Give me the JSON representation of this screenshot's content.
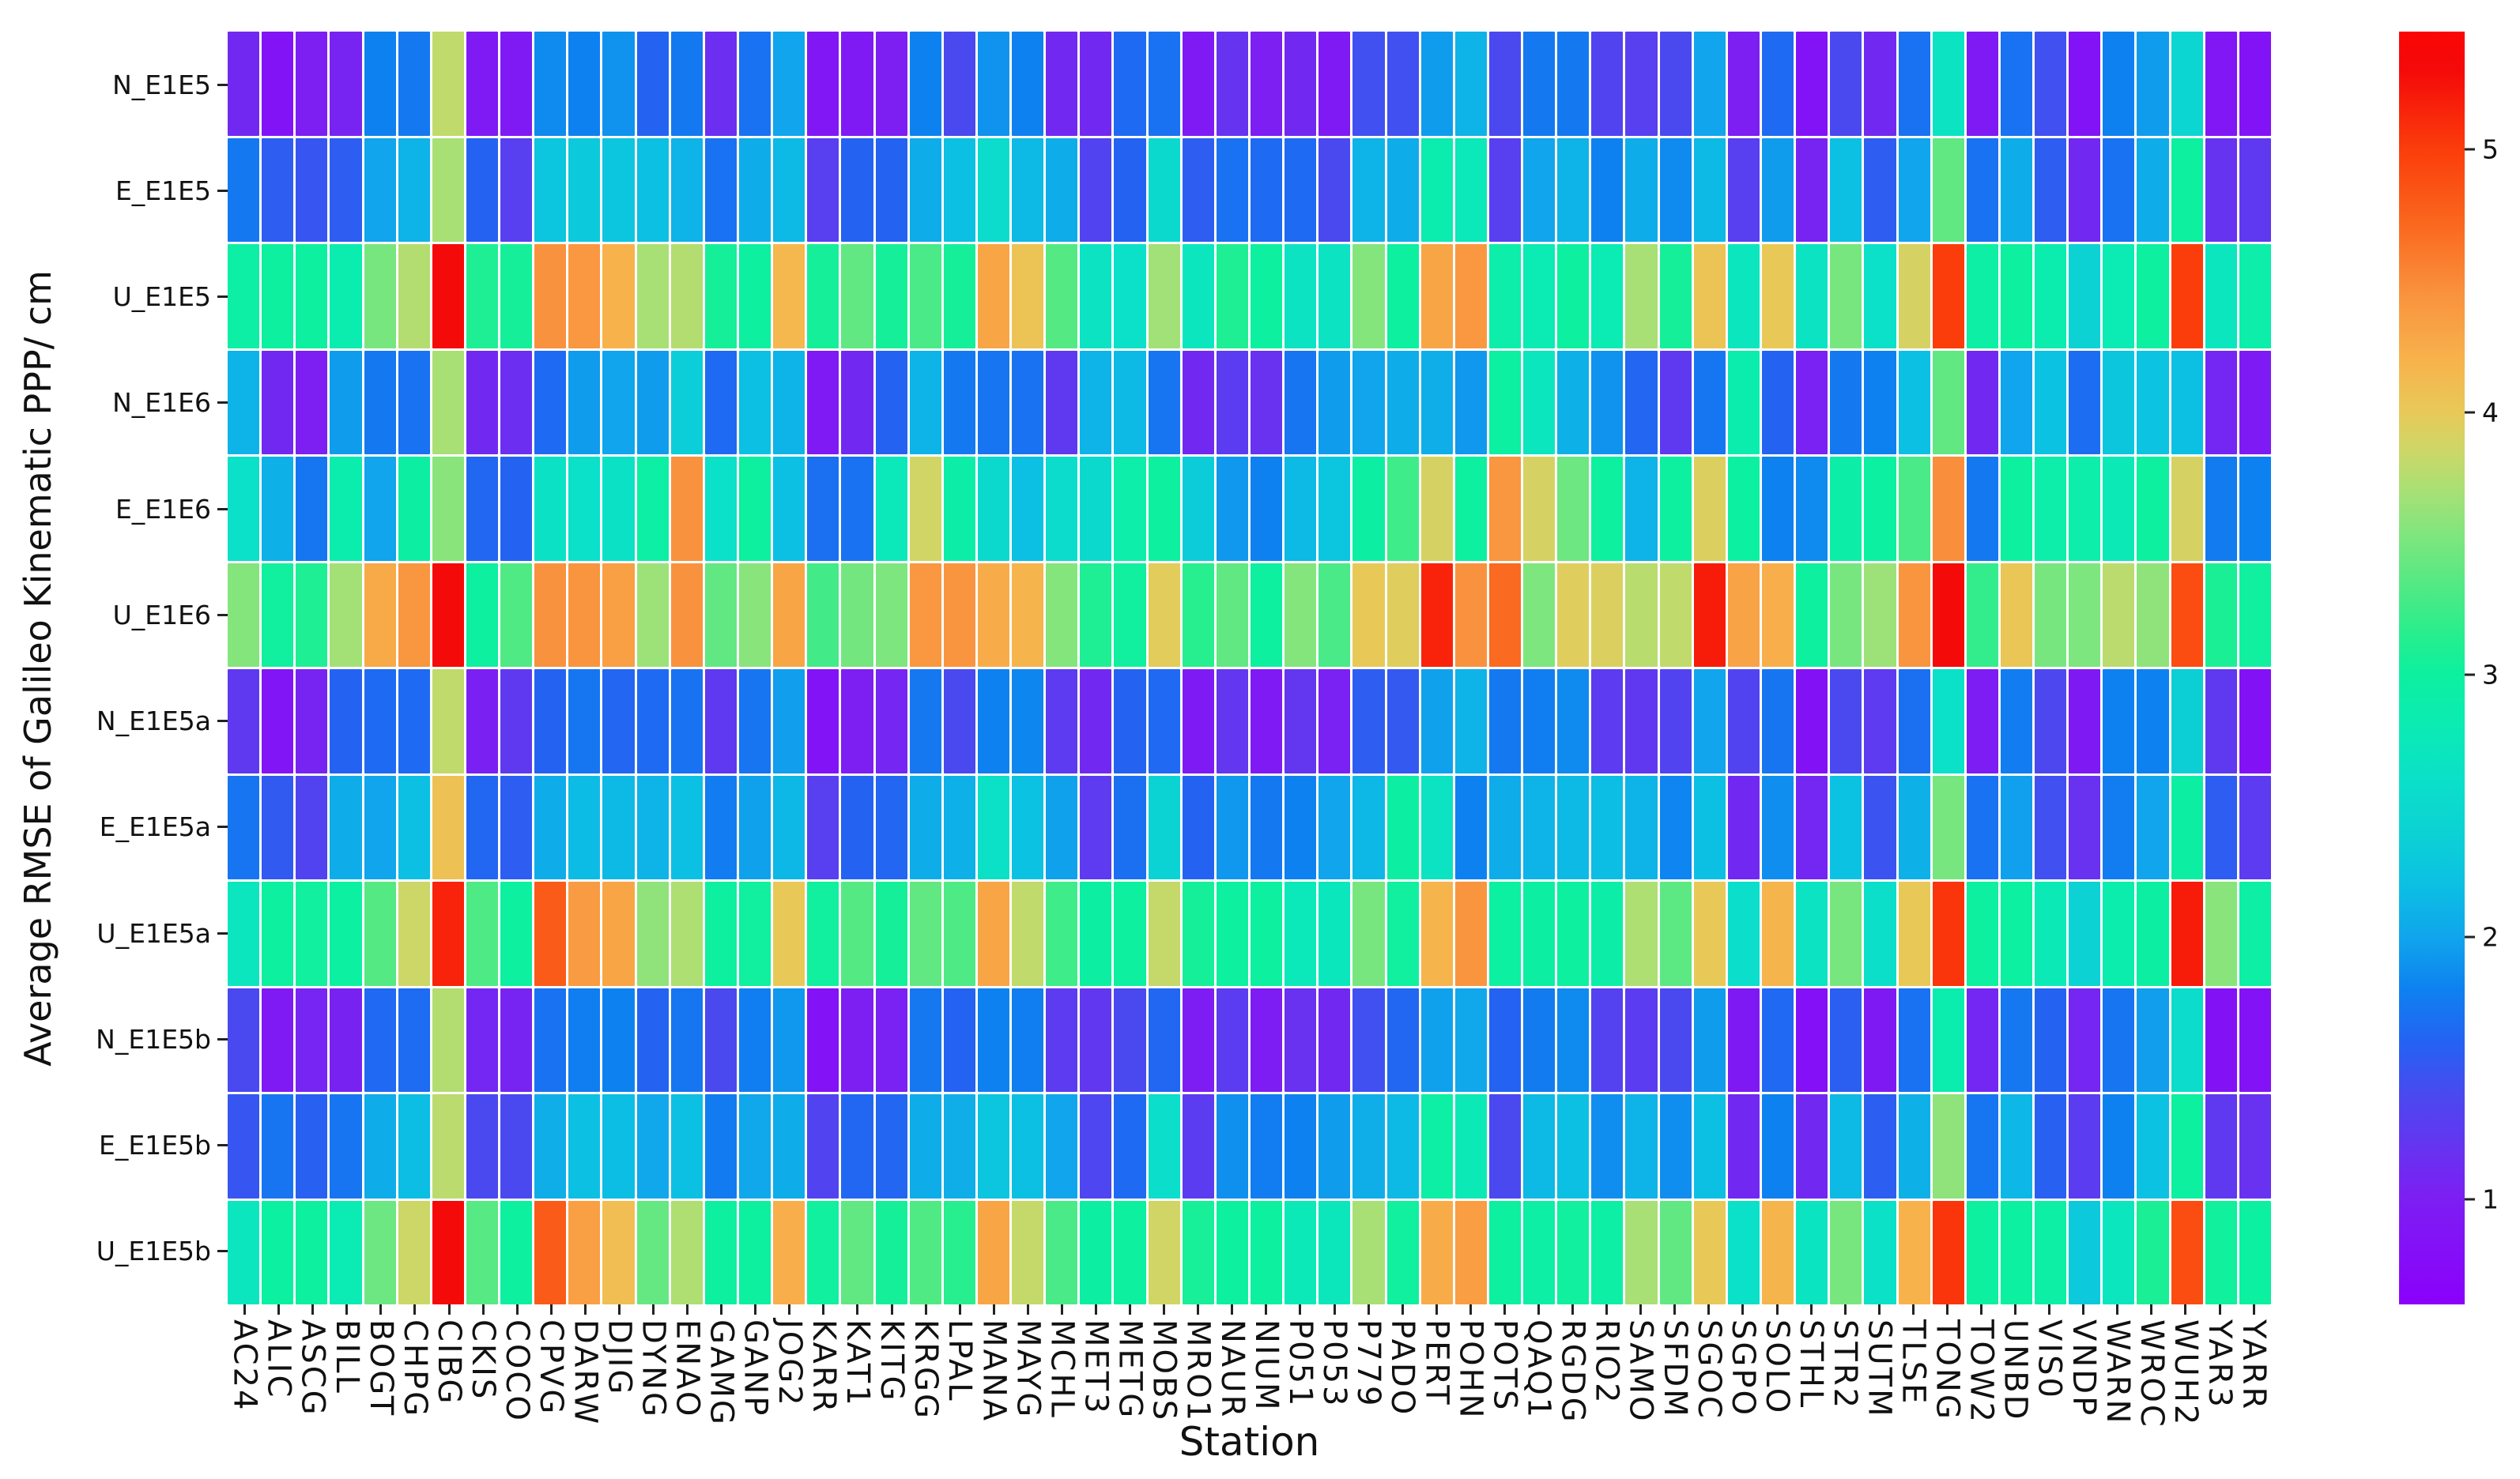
{
  "figure": {
    "background": "#ffffff",
    "text_color": "#111111",
    "tick_color": "#222222",
    "cell_gap_color": "#ffffff"
  },
  "chart_data": {
    "type": "heatmap",
    "title": "",
    "xlabel": "Station",
    "ylabel": "Average RMSE of Galileo Kinematic PPP/ cm",
    "legend_position": "right-colorbar",
    "grid": false,
    "colorbar_ticks": [
      1,
      2,
      3,
      4,
      5
    ],
    "value_range": [
      0.6,
      5.45
    ],
    "colormap_anchors": [
      [
        0.6,
        "#8b00fb"
      ],
      [
        1.0,
        "#7d1ef3"
      ],
      [
        1.2,
        "#6634f0"
      ],
      [
        1.4,
        "#4a49f0"
      ],
      [
        1.6,
        "#2463f2"
      ],
      [
        1.8,
        "#0e81f0"
      ],
      [
        2.0,
        "#10a5ec"
      ],
      [
        2.2,
        "#0cc0e3"
      ],
      [
        2.4,
        "#0cd2d4"
      ],
      [
        2.6,
        "#0be0c8"
      ],
      [
        2.8,
        "#0bebb4"
      ],
      [
        3.0,
        "#0cf0a0"
      ],
      [
        3.15,
        "#27ee8e"
      ],
      [
        3.35,
        "#55e984"
      ],
      [
        3.55,
        "#84e57d"
      ],
      [
        3.7,
        "#a8e075"
      ],
      [
        3.85,
        "#ccd768"
      ],
      [
        4.0,
        "#e8c958"
      ],
      [
        4.2,
        "#f8b24c"
      ],
      [
        4.45,
        "#f9923e"
      ],
      [
        4.7,
        "#fa6a20"
      ],
      [
        5.0,
        "#fb3d0b"
      ],
      [
        5.3,
        "#f50a0a"
      ],
      [
        5.45,
        "#fa0505"
      ]
    ],
    "rows": [
      "N_E1E5",
      "E_E1E5",
      "U_E1E5",
      "N_E1E6",
      "E_E1E6",
      "U_E1E6",
      "N_E1E5a",
      "E_E1E5a",
      "U_E1E5a",
      "N_E1E5b",
      "E_E1E5b",
      "U_E1E5b"
    ],
    "columns": [
      "AC24",
      "ALIC",
      "ASCG",
      "BILL",
      "BOGT",
      "CHPG",
      "CIBG",
      "CKIS",
      "COCO",
      "CPVG",
      "DARW",
      "DJIG",
      "DYNG",
      "ENAO",
      "GAMG",
      "GANP",
      "JOG2",
      "KARR",
      "KAT1",
      "KITG",
      "KRGG",
      "LPAL",
      "MANA",
      "MAYG",
      "MCHL",
      "MET3",
      "METG",
      "MOBS",
      "MRO1",
      "NAUR",
      "NIUM",
      "P051",
      "P053",
      "P779",
      "PADO",
      "PERT",
      "POHN",
      "POTS",
      "QAQ1",
      "RGDG",
      "RIO2",
      "SAMO",
      "SFDM",
      "SGOC",
      "SGPO",
      "SOLO",
      "STHL",
      "STR2",
      "SUTM",
      "TLSE",
      "TONG",
      "TOW2",
      "UNBD",
      "VIS0",
      "VNDP",
      "WARN",
      "WROC",
      "WUH2",
      "YAR3",
      "YARR"
    ],
    "values": [
      [
        1.1,
        0.85,
        1.0,
        1.05,
        1.8,
        1.75,
        3.8,
        0.95,
        0.95,
        1.85,
        1.8,
        1.9,
        1.6,
        1.75,
        1.15,
        1.7,
        2.0,
        0.9,
        0.95,
        1.0,
        1.8,
        1.4,
        1.9,
        1.8,
        1.1,
        1.1,
        1.65,
        1.7,
        0.95,
        1.2,
        1.0,
        1.1,
        0.95,
        1.45,
        1.45,
        1.95,
        2.1,
        1.4,
        1.75,
        1.75,
        1.35,
        1.3,
        1.4,
        2.0,
        1.0,
        1.65,
        0.85,
        1.4,
        1.1,
        1.7,
        2.65,
        0.95,
        1.7,
        1.45,
        0.85,
        1.8,
        1.95,
        2.45,
        0.9,
        0.85
      ],
      [
        1.75,
        1.55,
        1.5,
        1.55,
        2.0,
        2.1,
        3.7,
        1.6,
        1.3,
        2.25,
        2.3,
        2.25,
        2.2,
        2.1,
        1.7,
        2.05,
        2.15,
        1.3,
        1.6,
        1.6,
        2.05,
        2.2,
        2.55,
        2.15,
        2.05,
        1.35,
        1.6,
        2.5,
        1.55,
        1.7,
        1.65,
        1.65,
        1.4,
        2.1,
        2.05,
        2.85,
        2.75,
        1.3,
        2.0,
        2.1,
        1.8,
        2.05,
        1.85,
        2.15,
        1.3,
        1.95,
        1.05,
        2.2,
        1.55,
        2.0,
        3.4,
        1.7,
        2.05,
        1.55,
        1.1,
        1.7,
        2.05,
        3.0,
        1.2,
        1.25
      ],
      [
        2.95,
        3.0,
        3.0,
        2.85,
        3.5,
        3.75,
        5.3,
        3.1,
        3.05,
        4.45,
        4.4,
        4.2,
        3.7,
        3.75,
        3.05,
        3.0,
        4.15,
        3.05,
        3.4,
        3.05,
        3.3,
        3.05,
        4.3,
        4.05,
        3.35,
        2.65,
        2.6,
        3.67,
        2.7,
        3.1,
        3.0,
        2.65,
        2.65,
        3.55,
        3.0,
        4.3,
        4.4,
        2.9,
        2.8,
        3.0,
        2.8,
        3.7,
        3.05,
        4.05,
        2.7,
        4.0,
        2.65,
        3.5,
        2.6,
        3.9,
        5.0,
        2.95,
        3.0,
        2.85,
        2.4,
        2.8,
        3.0,
        5.0,
        2.7,
        2.9
      ],
      [
        2.1,
        1.1,
        1.0,
        1.95,
        1.75,
        1.7,
        3.7,
        1.1,
        1.15,
        1.65,
        1.95,
        2.0,
        1.95,
        2.35,
        1.65,
        2.2,
        2.1,
        0.95,
        1.1,
        1.6,
        2.1,
        1.75,
        1.72,
        1.7,
        1.25,
        2.1,
        2.15,
        1.72,
        1.1,
        1.28,
        1.18,
        1.72,
        1.95,
        2.0,
        2.05,
        2.07,
        1.93,
        2.98,
        2.7,
        2.08,
        1.9,
        1.62,
        1.25,
        1.73,
        2.88,
        1.6,
        1.03,
        1.75,
        1.8,
        2.2,
        3.4,
        1.1,
        2.0,
        2.22,
        1.67,
        2.27,
        2.23,
        2.2,
        1.08,
        0.96
      ],
      [
        2.6,
        2.08,
        1.73,
        2.88,
        2.0,
        2.97,
        3.57,
        1.63,
        1.6,
        2.63,
        2.6,
        2.63,
        2.95,
        4.45,
        2.6,
        3.0,
        2.2,
        1.68,
        1.7,
        2.75,
        3.87,
        2.92,
        2.5,
        2.2,
        2.55,
        2.5,
        2.9,
        3.0,
        2.33,
        1.93,
        1.8,
        2.15,
        2.25,
        2.97,
        3.25,
        3.9,
        3.0,
        4.42,
        3.9,
        3.45,
        3.0,
        2.1,
        3.0,
        3.93,
        2.98,
        1.8,
        1.85,
        2.93,
        2.98,
        3.3,
        4.47,
        1.75,
        3.0,
        2.9,
        2.9,
        2.78,
        3.0,
        3.9,
        1.76,
        1.8
      ],
      [
        3.55,
        3.02,
        3.1,
        3.68,
        4.27,
        4.42,
        5.3,
        3.0,
        3.33,
        4.45,
        4.43,
        4.35,
        3.65,
        4.45,
        3.4,
        3.57,
        4.3,
        3.27,
        3.48,
        3.52,
        4.4,
        4.43,
        4.25,
        4.18,
        3.55,
        3.1,
        3.02,
        3.97,
        3.15,
        3.4,
        3.0,
        3.55,
        3.3,
        4.0,
        3.95,
        5.15,
        4.45,
        4.7,
        3.52,
        3.95,
        3.93,
        3.77,
        3.8,
        5.2,
        4.32,
        4.22,
        3.0,
        3.5,
        3.65,
        4.43,
        5.3,
        3.2,
        4.03,
        3.5,
        3.52,
        3.78,
        3.6,
        4.9,
        3.08,
        3.02
      ],
      [
        1.25,
        0.88,
        1.05,
        1.6,
        1.65,
        1.65,
        3.8,
        1.02,
        1.25,
        1.6,
        1.73,
        1.62,
        1.65,
        1.7,
        1.25,
        1.72,
        1.96,
        0.85,
        1.0,
        1.07,
        1.74,
        1.4,
        1.8,
        1.83,
        1.27,
        1.1,
        1.6,
        1.64,
        0.96,
        1.22,
        0.95,
        1.22,
        1.03,
        1.55,
        1.52,
        1.98,
        2.1,
        1.75,
        1.78,
        1.85,
        1.27,
        1.24,
        1.35,
        2.0,
        1.35,
        1.72,
        0.83,
        1.4,
        1.26,
        1.68,
        2.6,
        0.97,
        1.77,
        1.38,
        0.93,
        1.8,
        1.8,
        2.37,
        1.25,
        0.83
      ],
      [
        1.72,
        1.53,
        1.35,
        2.05,
        2.0,
        2.2,
        4.07,
        1.63,
        1.55,
        2.05,
        2.17,
        2.15,
        2.1,
        2.2,
        1.77,
        1.98,
        2.13,
        1.3,
        1.6,
        1.62,
        2.05,
        2.08,
        2.62,
        2.22,
        1.98,
        1.26,
        1.68,
        2.42,
        1.6,
        1.93,
        1.75,
        1.8,
        2.0,
        2.13,
        2.97,
        2.65,
        1.8,
        2.05,
        2.1,
        2.15,
        2.18,
        2.1,
        1.82,
        2.2,
        1.1,
        1.87,
        1.08,
        2.22,
        1.48,
        2.08,
        3.5,
        1.7,
        1.97,
        1.45,
        1.18,
        1.77,
        2.0,
        2.97,
        1.55,
        1.27
      ],
      [
        2.7,
        3.0,
        3.02,
        2.98,
        3.35,
        3.85,
        5.15,
        3.32,
        3.0,
        4.8,
        4.38,
        4.3,
        3.6,
        3.72,
        3.0,
        3.02,
        4.0,
        3.02,
        3.35,
        3.05,
        3.4,
        3.32,
        4.3,
        3.8,
        3.25,
        2.97,
        3.0,
        3.82,
        3.05,
        3.0,
        3.0,
        2.75,
        2.72,
        3.5,
        3.02,
        4.18,
        4.43,
        2.98,
        2.97,
        3.0,
        2.92,
        3.72,
        3.38,
        4.0,
        2.57,
        4.18,
        2.65,
        3.5,
        2.58,
        4.0,
        5.05,
        3.0,
        2.98,
        2.78,
        2.4,
        2.88,
        2.97,
        5.2,
        3.57,
        2.96
      ],
      [
        1.4,
        0.95,
        1.06,
        1.04,
        1.64,
        1.66,
        3.75,
        1.08,
        1.05,
        1.7,
        1.78,
        1.8,
        1.6,
        1.73,
        1.4,
        1.78,
        1.93,
        0.84,
        1.0,
        1.03,
        1.74,
        1.6,
        1.8,
        1.78,
        1.27,
        1.23,
        1.4,
        1.63,
        0.97,
        1.28,
        0.98,
        1.17,
        1.1,
        1.45,
        1.63,
        1.98,
        2.02,
        1.6,
        1.76,
        1.85,
        1.33,
        1.28,
        1.4,
        1.95,
        0.94,
        1.64,
        0.82,
        1.57,
        0.94,
        1.7,
        2.85,
        1.08,
        1.74,
        1.6,
        1.07,
        1.72,
        1.96,
        2.55,
        0.83,
        0.84
      ],
      [
        1.5,
        1.72,
        1.58,
        1.72,
        2.05,
        2.18,
        3.78,
        1.4,
        1.4,
        2.07,
        2.2,
        2.18,
        2.02,
        2.2,
        1.76,
        2.02,
        2.05,
        1.35,
        1.63,
        1.62,
        2.05,
        2.07,
        2.25,
        2.2,
        2.0,
        1.37,
        1.65,
        2.57,
        1.28,
        1.88,
        1.77,
        1.8,
        1.95,
        2.07,
        2.15,
        2.96,
        2.78,
        1.4,
        2.15,
        2.2,
        1.87,
        2.1,
        1.87,
        2.2,
        1.1,
        1.8,
        1.1,
        2.15,
        1.56,
        2.08,
        3.6,
        1.73,
        2.13,
        1.58,
        1.28,
        1.8,
        2.22,
        3.0,
        1.25,
        1.18
      ],
      [
        2.7,
        2.98,
        3.0,
        2.8,
        3.45,
        3.85,
        5.3,
        3.36,
        3.0,
        4.8,
        4.35,
        4.1,
        3.42,
        3.73,
        3.0,
        3.0,
        4.22,
        3.02,
        3.4,
        3.05,
        3.33,
        3.15,
        4.3,
        3.82,
        3.3,
        2.97,
        3.0,
        3.87,
        3.06,
        3.0,
        3.0,
        2.76,
        2.73,
        3.7,
        3.02,
        4.25,
        4.36,
        3.0,
        2.95,
        3.02,
        2.96,
        3.7,
        3.4,
        4.0,
        2.6,
        4.18,
        2.68,
        3.5,
        2.62,
        4.2,
        5.05,
        3.0,
        2.98,
        2.96,
        2.3,
        2.7,
        3.08,
        4.9,
        3.03,
        2.98
      ]
    ]
  }
}
